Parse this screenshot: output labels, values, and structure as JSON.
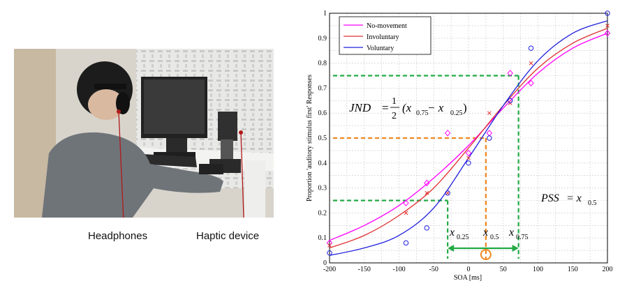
{
  "photo": {
    "labels": {
      "headphones": "Headphones",
      "haptic": "Haptic device"
    }
  },
  "chart_data": {
    "type": "line",
    "xlabel": "SOA [ms]",
    "ylabel": "Proportion 'auditory stimulus first' Responses",
    "xlim": [
      -200,
      200
    ],
    "ylim": [
      0,
      1
    ],
    "xticks": [
      -200,
      -150,
      -100,
      -50,
      0,
      50,
      100,
      150,
      200
    ],
    "yticks": [
      0,
      0.1,
      0.2,
      0.3,
      0.4,
      0.5,
      0.6,
      0.7,
      0.8,
      0.9,
      1
    ],
    "grid": true,
    "legend_position": "top-left",
    "series": [
      {
        "name": "No-movement",
        "color": "#ff00ff",
        "marker": "diamond",
        "x": [
          -200,
          -90,
          -60,
          -30,
          0,
          30,
          60,
          90,
          200
        ],
        "y": [
          0.08,
          0.24,
          0.32,
          0.52,
          0.44,
          0.52,
          0.76,
          0.72,
          0.92
        ],
        "curve_x": [
          -200,
          -150,
          -100,
          -50,
          0,
          50,
          100,
          150,
          200
        ],
        "curve_y": [
          0.09,
          0.15,
          0.23,
          0.34,
          0.47,
          0.62,
          0.76,
          0.86,
          0.92
        ]
      },
      {
        "name": "Involuntary",
        "color": "#e03030",
        "marker": "cross",
        "x": [
          -200,
          -90,
          -60,
          -30,
          0,
          30,
          60,
          90,
          200
        ],
        "y": [
          0.07,
          0.2,
          0.28,
          0.28,
          0.42,
          0.6,
          0.64,
          0.8,
          0.95
        ],
        "curve_x": [
          -200,
          -150,
          -100,
          -50,
          0,
          50,
          100,
          150,
          200
        ],
        "curve_y": [
          0.06,
          0.11,
          0.19,
          0.3,
          0.46,
          0.63,
          0.78,
          0.88,
          0.94
        ]
      },
      {
        "name": "Voluntary",
        "color": "#2020dd",
        "marker": "circle",
        "x": [
          -200,
          -90,
          -60,
          -30,
          0,
          30,
          60,
          90,
          200
        ],
        "y": [
          0.04,
          0.08,
          0.14,
          0.28,
          0.4,
          0.5,
          0.65,
          0.86,
          1.0
        ],
        "curve_x": [
          -200,
          -150,
          -100,
          -50,
          0,
          50,
          100,
          150,
          200
        ],
        "curve_y": [
          0.03,
          0.06,
          0.11,
          0.22,
          0.42,
          0.63,
          0.81,
          0.92,
          0.97
        ]
      }
    ],
    "annotations": {
      "jnd_formula": {
        "lhs": "JND",
        "frac_num": "1",
        "frac_den": "2",
        "rhs": "(x",
        "sub1": "0.75",
        "mid": " − x",
        "sub2": "0.25",
        "close": ")"
      },
      "pss_formula": {
        "lhs": "PSS",
        "eq": " = x",
        "sub": "0.5"
      },
      "x_marks": [
        {
          "base": "x",
          "sub": "0.25",
          "soa": -30
        },
        {
          "base": "x",
          "sub": "0.5",
          "soa": 25
        },
        {
          "base": "x",
          "sub": "0.75",
          "soa": 72
        }
      ],
      "guides": [
        {
          "y": 0.25,
          "x": -30,
          "color": "#22aa44"
        },
        {
          "y": 0.5,
          "x": 25,
          "color": "#ee8822"
        },
        {
          "y": 0.75,
          "x": 72,
          "color": "#22aa44"
        }
      ]
    }
  }
}
